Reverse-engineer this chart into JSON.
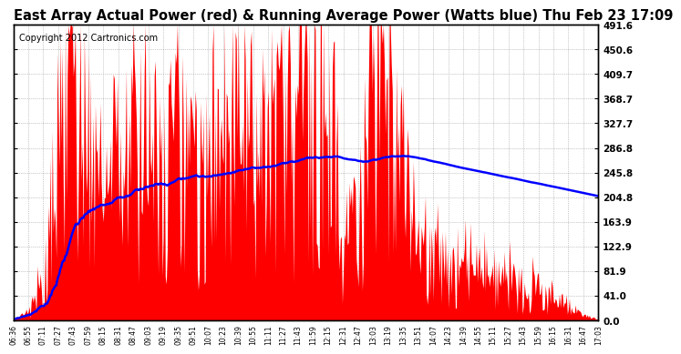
{
  "title": "East Array Actual Power (red) & Running Average Power (Watts blue) Thu Feb 23 17:09",
  "copyright": "Copyright 2012 Cartronics.com",
  "y_max": 491.6,
  "y_min": 0.0,
  "y_ticks": [
    0.0,
    41.0,
    81.9,
    122.9,
    163.9,
    204.8,
    245.8,
    286.8,
    327.7,
    368.7,
    409.7,
    450.6,
    491.6
  ],
  "x_labels": [
    "06:36",
    "06:55",
    "07:11",
    "07:27",
    "07:43",
    "07:59",
    "08:15",
    "08:31",
    "08:47",
    "09:03",
    "09:19",
    "09:35",
    "09:51",
    "10:07",
    "10:23",
    "10:39",
    "10:55",
    "11:11",
    "11:27",
    "11:43",
    "11:59",
    "12:15",
    "12:31",
    "12:47",
    "13:03",
    "13:19",
    "13:35",
    "13:51",
    "14:07",
    "14:23",
    "14:39",
    "14:55",
    "15:11",
    "15:27",
    "15:43",
    "15:59",
    "16:15",
    "16:31",
    "16:47",
    "17:03"
  ],
  "background_color": "#ffffff",
  "plot_bg_color": "#ffffff",
  "red_color": "#ff0000",
  "blue_color": "#0000ff",
  "title_fontsize": 10.5,
  "copyright_fontsize": 7,
  "tick_fontsize": 7.5
}
